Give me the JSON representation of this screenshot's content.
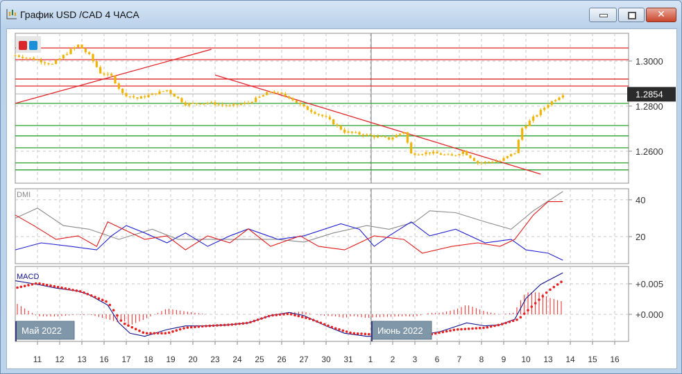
{
  "window": {
    "title": "График USD /CAD  4 ЧАСА",
    "buttons": [
      "minimize",
      "maximize",
      "close"
    ]
  },
  "legend_swatches": {
    "colors": [
      "#d9262b",
      "#1d8fd6"
    ]
  },
  "panes": {
    "dmi_label": "DMI",
    "macd_label": "MACD",
    "month_labels": [
      "Май 2022",
      "Июнь 2022"
    ],
    "current_price": "1.2854"
  },
  "colors": {
    "candle": "#f2b200",
    "resistance": "#e0262b",
    "support": "#27a02e",
    "adx": "#8a8a8a",
    "plus_di": "#1f1fd0",
    "minus_di": "#e01818",
    "macd": "#10108a",
    "signal": "#e82020",
    "histogram": "#e82020"
  },
  "chart_data": [
    {
      "type": "candlestick",
      "title": "USD/CAD 4H",
      "y_ticks": [
        "1.3000",
        "1.2800",
        "1.2600"
      ],
      "y_tick_values": [
        1.3,
        1.28,
        1.26
      ],
      "ylim": [
        1.2458,
        1.3123
      ],
      "x_tick_labels": [
        "11",
        "12",
        "13",
        "16",
        "17",
        "18",
        "19",
        "20",
        "23",
        "24",
        "25",
        "26",
        "27",
        "30",
        "31",
        "1",
        "2",
        "3",
        "6",
        "7",
        "8",
        "9",
        "10",
        "13",
        "14",
        "15",
        "16"
      ],
      "calendar": [
        "2022-05-10",
        "2022-05-11",
        "2022-05-12",
        "2022-05-13",
        "2022-05-16",
        "2022-05-17",
        "2022-05-18",
        "2022-05-19",
        "2022-05-20",
        "2022-05-23",
        "2022-05-24",
        "2022-05-25",
        "2022-05-26",
        "2022-05-27",
        "2022-05-30",
        "2022-05-31",
        "2022-06-01",
        "2022-06-02",
        "2022-06-03",
        "2022-06-06",
        "2022-06-07",
        "2022-06-08",
        "2022-06-09",
        "2022-06-10",
        "2022-06-13",
        "2022-06-14",
        "2022-06-15",
        "2022-06-16"
      ],
      "close_path": [
        [
          "2022-05-10 00",
          1.3025
        ],
        [
          "2022-05-10 20",
          1.3009
        ],
        [
          "2022-05-11 16",
          1.2985
        ],
        [
          "2022-05-12 12",
          1.3049
        ],
        [
          "2022-05-12 20",
          1.3071
        ],
        [
          "2022-05-13 08",
          1.3025
        ],
        [
          "2022-05-13 20",
          1.2948
        ],
        [
          "2022-05-16 08",
          1.2932
        ],
        [
          "2022-05-16 20",
          1.2855
        ],
        [
          "2022-05-17 12",
          1.2834
        ],
        [
          "2022-05-18 20",
          1.2871
        ],
        [
          "2022-05-19 16",
          1.2809
        ],
        [
          "2022-05-20 16",
          1.2815
        ],
        [
          "2022-05-23 16",
          1.28
        ],
        [
          "2022-05-24 12",
          1.2815
        ],
        [
          "2022-05-25 12",
          1.2865
        ],
        [
          "2022-05-26 08",
          1.284
        ],
        [
          "2022-05-27 00",
          1.2794
        ],
        [
          "2022-05-30 00",
          1.2748
        ],
        [
          "2022-05-30 20",
          1.2686
        ],
        [
          "2022-05-31 20",
          1.2671
        ],
        [
          "2022-06-01 20",
          1.2655
        ],
        [
          "2022-06-02 12",
          1.2686
        ],
        [
          "2022-06-02 20",
          1.2588
        ],
        [
          "2022-06-03 16",
          1.2594
        ],
        [
          "2022-06-06 16",
          1.2578
        ],
        [
          "2022-06-07 04",
          1.26
        ],
        [
          "2022-06-07 20",
          1.2548
        ],
        [
          "2022-06-08 20",
          1.2557
        ],
        [
          "2022-06-09 12",
          1.2594
        ],
        [
          "2022-06-09 20",
          1.2702
        ],
        [
          "2022-06-10 08",
          1.2748
        ],
        [
          "2022-06-13 00",
          1.2809
        ],
        [
          "2022-06-13 16",
          1.2854
        ]
      ],
      "horizontal_levels": {
        "resistance": [
          1.3058,
          1.3006,
          1.292,
          1.2889
        ],
        "support": [
          1.2812,
          1.2714,
          1.2668,
          1.2615,
          1.2548,
          1.2517
        ]
      },
      "trendlines": [
        [
          [
            "2022-05-10 00",
            1.2812
          ],
          [
            "2022-05-20 20",
            1.3052
          ]
        ],
        [
          [
            "2022-05-23 00",
            1.2938
          ],
          [
            "2022-06-10 16",
            1.2498
          ]
        ]
      ]
    },
    {
      "type": "line",
      "title": "DMI",
      "y_ticks": [
        "40",
        "20"
      ],
      "ylim": [
        5.3,
        46
      ],
      "series": [
        {
          "key": "adx",
          "points": [
            [
              "2022-05-10 00",
              30
            ],
            [
              "2022-05-11 00",
              35.5
            ],
            [
              "2022-05-12 04",
              26
            ],
            [
              "2022-05-13 08",
              24
            ],
            [
              "2022-05-16 16",
              18.5
            ],
            [
              "2022-05-18 04",
              24
            ],
            [
              "2022-05-19 08",
              18.5
            ],
            [
              "2022-05-20 16",
              18.5
            ],
            [
              "2022-05-24 04",
              18.5
            ],
            [
              "2022-05-25 20",
              18.5
            ],
            [
              "2022-05-27 00",
              17
            ],
            [
              "2022-05-30 08",
              22
            ],
            [
              "2022-05-31 20",
              26
            ],
            [
              "2022-06-01 20",
              24
            ],
            [
              "2022-06-03 00",
              28
            ],
            [
              "2022-06-03 16",
              34
            ],
            [
              "2022-06-06 20",
              33
            ],
            [
              "2022-06-08 04",
              28
            ],
            [
              "2022-06-09 08",
              24
            ],
            [
              "2022-06-10 08",
              34
            ],
            [
              "2022-06-13 16",
              44.5
            ]
          ]
        },
        {
          "key": "plus_di",
          "points": [
            [
              "2022-05-10 00",
              12.8
            ],
            [
              "2022-05-11 04",
              16.6
            ],
            [
              "2022-05-12 12",
              14.7
            ],
            [
              "2022-05-13 16",
              12.8
            ],
            [
              "2022-05-16 08",
              20.4
            ],
            [
              "2022-05-17 00",
              26
            ],
            [
              "2022-05-17 20",
              22
            ],
            [
              "2022-05-18 20",
              16.6
            ],
            [
              "2022-05-19 16",
              22
            ],
            [
              "2022-05-20 16",
              14.7
            ],
            [
              "2022-05-23 16",
              20.4
            ],
            [
              "2022-05-24 12",
              24.2
            ],
            [
              "2022-05-25 20",
              18.5
            ],
            [
              "2022-05-27 00",
              20.4
            ],
            [
              "2022-05-30 16",
              27
            ],
            [
              "2022-05-31 12",
              24
            ],
            [
              "2022-06-01 04",
              14.7
            ],
            [
              "2022-06-01 20",
              20.4
            ],
            [
              "2022-06-02 20",
              28
            ],
            [
              "2022-06-03 16",
              20.4
            ],
            [
              "2022-06-06 20",
              24
            ],
            [
              "2022-06-08 04",
              16.6
            ],
            [
              "2022-06-09 08",
              18.5
            ],
            [
              "2022-06-10 00",
              12.8
            ],
            [
              "2022-06-13 00",
              11
            ],
            [
              "2022-06-13 16",
              7.2
            ]
          ]
        },
        {
          "key": "minus_di",
          "points": [
            [
              "2022-05-10 00",
              31.7
            ],
            [
              "2022-05-10 20",
              26
            ],
            [
              "2022-05-11 20",
              18.5
            ],
            [
              "2022-05-12 20",
              20.4
            ],
            [
              "2022-05-13 16",
              14.7
            ],
            [
              "2022-05-16 04",
              28
            ],
            [
              "2022-05-16 20",
              24.2
            ],
            [
              "2022-05-17 20",
              18.5
            ],
            [
              "2022-05-18 20",
              20.4
            ],
            [
              "2022-05-19 16",
              12.8
            ],
            [
              "2022-05-20 16",
              20.4
            ],
            [
              "2022-05-23 16",
              16.6
            ],
            [
              "2022-05-24 12",
              24.2
            ],
            [
              "2022-05-25 12",
              14.7
            ],
            [
              "2022-05-26 20",
              20.4
            ],
            [
              "2022-05-27 16",
              14.7
            ],
            [
              "2022-05-30 20",
              12.8
            ],
            [
              "2022-06-01 04",
              20.4
            ],
            [
              "2022-06-02 12",
              18.5
            ],
            [
              "2022-06-03 08",
              11
            ],
            [
              "2022-06-06 16",
              14.7
            ],
            [
              "2022-06-07 20",
              16.6
            ],
            [
              "2022-06-08 20",
              14.7
            ],
            [
              "2022-06-09 12",
              18.5
            ],
            [
              "2022-06-10 08",
              31.7
            ],
            [
              "2022-06-13 00",
              39
            ],
            [
              "2022-06-13 16",
              39
            ]
          ]
        }
      ]
    },
    {
      "type": "line",
      "title": "MACD",
      "y_ticks": [
        "+0.005",
        "+0.000"
      ],
      "y_tick_values": [
        0.005,
        0.0
      ],
      "ylim": [
        -0.00443,
        0.00784
      ],
      "series": [
        {
          "key": "macd",
          "points": [
            [
              "2022-05-10 00",
              0.0055
            ],
            [
              "2022-05-11 00",
              0.0049
            ],
            [
              "2022-05-11 20",
              0.0043
            ],
            [
              "2022-05-12 20",
              0.0038
            ],
            [
              "2022-05-13 08",
              0.0032
            ],
            [
              "2022-05-16 04",
              0.0015
            ],
            [
              "2022-05-16 16",
              -0.0014
            ],
            [
              "2022-05-17 04",
              -0.0031
            ],
            [
              "2022-05-17 20",
              -0.0036
            ],
            [
              "2022-05-18 20",
              -0.0025
            ],
            [
              "2022-05-19 16",
              -0.0019
            ],
            [
              "2022-05-20 16",
              -0.0019
            ],
            [
              "2022-05-23 16",
              -0.0017
            ],
            [
              "2022-05-24 12",
              -0.0014
            ],
            [
              "2022-05-25 12",
              -0.0002
            ],
            [
              "2022-05-26 08",
              0.0003
            ],
            [
              "2022-05-27 00",
              -0.0002
            ],
            [
              "2022-05-30 00",
              -0.0019
            ],
            [
              "2022-05-30 20",
              -0.0031
            ],
            [
              "2022-05-31 20",
              -0.0036
            ],
            [
              "2022-06-01 20",
              -0.0036
            ],
            [
              "2022-06-03 00",
              -0.0036
            ],
            [
              "2022-06-06 04",
              -0.0028
            ],
            [
              "2022-06-07 08",
              -0.0014
            ],
            [
              "2022-06-08 04",
              -0.0019
            ],
            [
              "2022-06-08 20",
              -0.0017
            ],
            [
              "2022-06-09 12",
              -0.0008
            ],
            [
              "2022-06-10 00",
              0.0026
            ],
            [
              "2022-06-10 16",
              0.0049
            ],
            [
              "2022-06-13 16",
              0.0068
            ]
          ]
        },
        {
          "key": "signal",
          "points": [
            [
              "2022-05-10 00",
              0.0043
            ],
            [
              "2022-05-11 00",
              0.0051
            ],
            [
              "2022-05-12 04",
              0.0043
            ],
            [
              "2022-05-13 00",
              0.0037
            ],
            [
              "2022-05-16 04",
              0.002
            ],
            [
              "2022-05-16 20",
              -0.0014
            ],
            [
              "2022-05-17 20",
              -0.0031
            ],
            [
              "2022-05-18 20",
              -0.0031
            ],
            [
              "2022-05-19 16",
              -0.0022
            ],
            [
              "2022-05-20 16",
              -0.0019
            ],
            [
              "2022-05-23 16",
              -0.0017
            ],
            [
              "2022-05-24 12",
              -0.0014
            ],
            [
              "2022-05-25 12",
              -0.0002
            ],
            [
              "2022-05-26 08",
              0.0001
            ],
            [
              "2022-05-27 08",
              -0.0008
            ],
            [
              "2022-05-30 08",
              -0.0022
            ],
            [
              "2022-05-31 04",
              -0.0031
            ],
            [
              "2022-06-01 04",
              -0.0033
            ],
            [
              "2022-06-02 12",
              -0.0034
            ],
            [
              "2022-06-03 16",
              -0.0033
            ],
            [
              "2022-06-06 20",
              -0.0025
            ],
            [
              "2022-06-08 04",
              -0.0022
            ],
            [
              "2022-06-08 20",
              -0.0017
            ],
            [
              "2022-06-09 16",
              -0.0008
            ],
            [
              "2022-06-10 08",
              0.0015
            ],
            [
              "2022-06-13 00",
              0.0038
            ],
            [
              "2022-06-13 16",
              0.0055
            ]
          ]
        }
      ]
    }
  ]
}
